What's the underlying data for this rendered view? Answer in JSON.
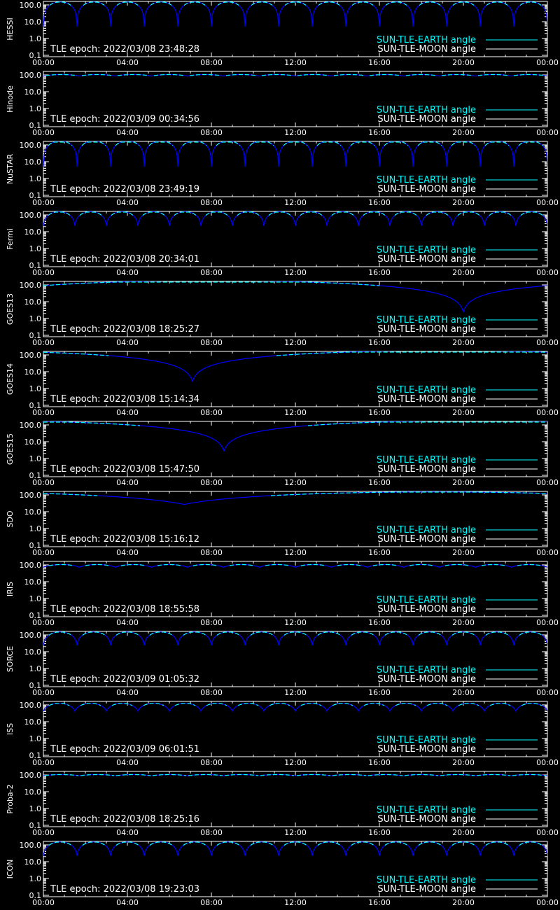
{
  "colors": {
    "background": "#000000",
    "axis": "#ffffff",
    "earth": "#00ffff",
    "moon": "#ffffff",
    "sun_angle": "#0000ff"
  },
  "legend": {
    "earth_label": "SUN-TLE-EARTH angle",
    "moon_label": "SUN-TLE-MOON angle"
  },
  "chart_data": [
    {
      "type": "line",
      "satellite": "HESSI",
      "epoch_text": "TLE epoch: 2022/03/08 23:48:28",
      "yscale": "log",
      "ylim": [
        0.1,
        100
      ],
      "y_ticks": [
        "100.0",
        "10.0",
        "1.0",
        "0.1"
      ],
      "x_ticks": [
        "00:00",
        "04:00",
        "08:00",
        "12:00",
        "16:00",
        "20:00",
        "00:00"
      ],
      "curve": {
        "kind": "orbital",
        "n_dips": 15,
        "max": 150,
        "min": 5
      }
    },
    {
      "type": "line",
      "satellite": "Hinode",
      "epoch_text": "TLE epoch: 2022/03/09 00:34:56",
      "yscale": "log",
      "ylim": [
        0.1,
        100
      ],
      "y_ticks": [
        "100.0",
        "10.0",
        "1.0",
        "0.1"
      ],
      "x_ticks": [
        "00:00",
        "04:00",
        "08:00",
        "12:00",
        "16:00",
        "20:00",
        "00:00"
      ],
      "curve": {
        "kind": "orbital",
        "n_dips": 14,
        "max": 105,
        "min": 85
      }
    },
    {
      "type": "line",
      "satellite": "NuSTAR",
      "epoch_text": "TLE epoch: 2022/03/08 23:49:19",
      "yscale": "log",
      "ylim": [
        0.1,
        100
      ],
      "y_ticks": [
        "100.0",
        "10.0",
        "1.0",
        "0.1"
      ],
      "x_ticks": [
        "00:00",
        "04:00",
        "08:00",
        "12:00",
        "16:00",
        "20:00",
        "00:00"
      ],
      "curve": {
        "kind": "orbital",
        "n_dips": 15,
        "max": 170,
        "min": 5
      }
    },
    {
      "type": "line",
      "satellite": "Fermi",
      "epoch_text": "TLE epoch: 2022/03/08 20:34:01",
      "yscale": "log",
      "ylim": [
        0.1,
        100
      ],
      "y_ticks": [
        "100.0",
        "10.0",
        "1.0",
        "0.1"
      ],
      "x_ticks": [
        "00:00",
        "04:00",
        "08:00",
        "12:00",
        "16:00",
        "20:00",
        "00:00"
      ],
      "curve": {
        "kind": "orbital",
        "n_dips": 16,
        "max": 155,
        "min": 22
      }
    },
    {
      "type": "line",
      "satellite": "GOES13",
      "epoch_text": "TLE epoch: 2022/03/08 18:25:27",
      "yscale": "log",
      "ylim": [
        0.1,
        100
      ],
      "y_ticks": [
        "100.0",
        "10.0",
        "1.0",
        "0.1"
      ],
      "x_ticks": [
        "00:00",
        "04:00",
        "08:00",
        "12:00",
        "16:00",
        "20:00",
        "00:00"
      ],
      "curve": {
        "kind": "geo",
        "dip_hour": 20.0,
        "min": 2.5,
        "max": 178
      }
    },
    {
      "type": "line",
      "satellite": "GOES14",
      "epoch_text": "TLE epoch: 2022/03/08 15:14:34",
      "yscale": "log",
      "ylim": [
        0.1,
        100
      ],
      "y_ticks": [
        "100.0",
        "10.0",
        "1.0",
        "0.1"
      ],
      "x_ticks": [
        "00:00",
        "04:00",
        "08:00",
        "12:00",
        "16:00",
        "20:00",
        "00:00"
      ],
      "curve": {
        "kind": "geo",
        "dip_hour": 7.1,
        "min": 2.7,
        "max": 178
      }
    },
    {
      "type": "line",
      "satellite": "GOES15",
      "epoch_text": "TLE epoch: 2022/03/08 15:47:50",
      "yscale": "log",
      "ylim": [
        0.1,
        100
      ],
      "y_ticks": [
        "100.0",
        "10.0",
        "1.0",
        "0.1"
      ],
      "x_ticks": [
        "00:00",
        "04:00",
        "08:00",
        "12:00",
        "16:00",
        "20:00",
        "00:00"
      ],
      "curve": {
        "kind": "geo",
        "dip_hour": 8.6,
        "min": 2.8,
        "max": 178
      }
    },
    {
      "type": "line",
      "satellite": "SDO",
      "epoch_text": "TLE epoch: 2022/03/08 15:16:12",
      "yscale": "log",
      "ylim": [
        0.1,
        100
      ],
      "y_ticks": [
        "100.0",
        "10.0",
        "1.0",
        "0.1"
      ],
      "x_ticks": [
        "00:00",
        "04:00",
        "08:00",
        "12:00",
        "16:00",
        "20:00",
        "00:00"
      ],
      "curve": {
        "kind": "geo",
        "dip_hour": 6.7,
        "min": 27,
        "max": 150
      }
    },
    {
      "type": "line",
      "satellite": "IRIS",
      "epoch_text": "TLE epoch: 2022/03/08 18:55:58",
      "yscale": "log",
      "ylim": [
        0.1,
        100
      ],
      "y_ticks": [
        "100.0",
        "10.0",
        "1.0",
        "0.1"
      ],
      "x_ticks": [
        "00:00",
        "04:00",
        "08:00",
        "12:00",
        "16:00",
        "20:00",
        "00:00"
      ],
      "curve": {
        "kind": "orbital",
        "n_dips": 14,
        "max": 105,
        "min": 72
      }
    },
    {
      "type": "line",
      "satellite": "SORCE",
      "epoch_text": "TLE epoch: 2022/03/09 01:05:32",
      "yscale": "log",
      "ylim": [
        0.1,
        100
      ],
      "y_ticks": [
        "100.0",
        "10.0",
        "1.0",
        "0.1"
      ],
      "x_ticks": [
        "00:00",
        "04:00",
        "08:00",
        "12:00",
        "16:00",
        "20:00",
        "00:00"
      ],
      "curve": {
        "kind": "orbital",
        "n_dips": 15,
        "max": 150,
        "min": 24
      }
    },
    {
      "type": "line",
      "satellite": "ISS",
      "epoch_text": "TLE epoch: 2022/03/09 06:01:51",
      "yscale": "log",
      "ylim": [
        0.1,
        100
      ],
      "y_ticks": [
        "100.0",
        "10.0",
        "1.0",
        "0.1"
      ],
      "x_ticks": [
        "00:00",
        "04:00",
        "08:00",
        "12:00",
        "16:00",
        "20:00",
        "00:00"
      ],
      "curve": {
        "kind": "orbital",
        "n_dips": 16,
        "max": 125,
        "min": 42
      }
    },
    {
      "type": "line",
      "satellite": "Proba-2",
      "epoch_text": "TLE epoch: 2022/03/08 18:25:16",
      "yscale": "log",
      "ylim": [
        0.1,
        100
      ],
      "y_ticks": [
        "100.0",
        "10.0",
        "1.0",
        "0.1"
      ],
      "x_ticks": [
        "00:00",
        "04:00",
        "08:00",
        "12:00",
        "16:00",
        "20:00",
        "00:00"
      ],
      "curve": {
        "kind": "orbital",
        "n_dips": 14,
        "max": 105,
        "min": 88
      }
    },
    {
      "type": "line",
      "satellite": "ICON",
      "epoch_text": "TLE epoch: 2022/03/08 19:23:03",
      "yscale": "log",
      "ylim": [
        0.1,
        100
      ],
      "y_ticks": [
        "100.0",
        "10.0",
        "1.0",
        "0.1"
      ],
      "x_ticks": [
        "00:00",
        "04:00",
        "08:00",
        "12:00",
        "16:00",
        "20:00",
        "00:00"
      ],
      "curve": {
        "kind": "orbital",
        "n_dips": 15,
        "max": 150,
        "min": 22
      }
    }
  ]
}
